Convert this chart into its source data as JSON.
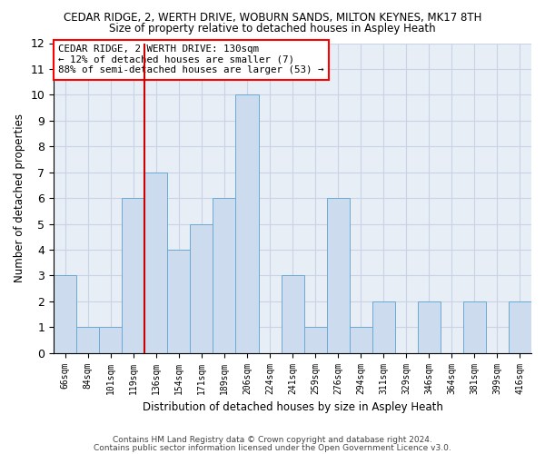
{
  "title": "CEDAR RIDGE, 2, WERTH DRIVE, WOBURN SANDS, MILTON KEYNES, MK17 8TH",
  "subtitle": "Size of property relative to detached houses in Aspley Heath",
  "xlabel": "Distribution of detached houses by size in Aspley Heath",
  "ylabel": "Number of detached properties",
  "categories": [
    "66sqm",
    "84sqm",
    "101sqm",
    "119sqm",
    "136sqm",
    "154sqm",
    "171sqm",
    "189sqm",
    "206sqm",
    "224sqm",
    "241sqm",
    "259sqm",
    "276sqm",
    "294sqm",
    "311sqm",
    "329sqm",
    "346sqm",
    "364sqm",
    "381sqm",
    "399sqm",
    "416sqm"
  ],
  "values": [
    3,
    1,
    1,
    6,
    7,
    4,
    5,
    6,
    10,
    0,
    3,
    1,
    6,
    1,
    2,
    0,
    2,
    0,
    2,
    0,
    2
  ],
  "bar_color": "#ccdcee",
  "bar_edge_color": "#6aaad4",
  "grid_color": "#c8d4e4",
  "background_color": "#e8eef6",
  "annotation_text": "CEDAR RIDGE, 2 WERTH DRIVE: 130sqm\n← 12% of detached houses are smaller (7)\n88% of semi-detached houses are larger (53) →",
  "redline_x": 3.5,
  "ylim": [
    0,
    12
  ],
  "yticks": [
    0,
    1,
    2,
    3,
    4,
    5,
    6,
    7,
    8,
    9,
    10,
    11,
    12
  ],
  "footer1": "Contains HM Land Registry data © Crown copyright and database right 2024.",
  "footer2": "Contains public sector information licensed under the Open Government Licence v3.0."
}
